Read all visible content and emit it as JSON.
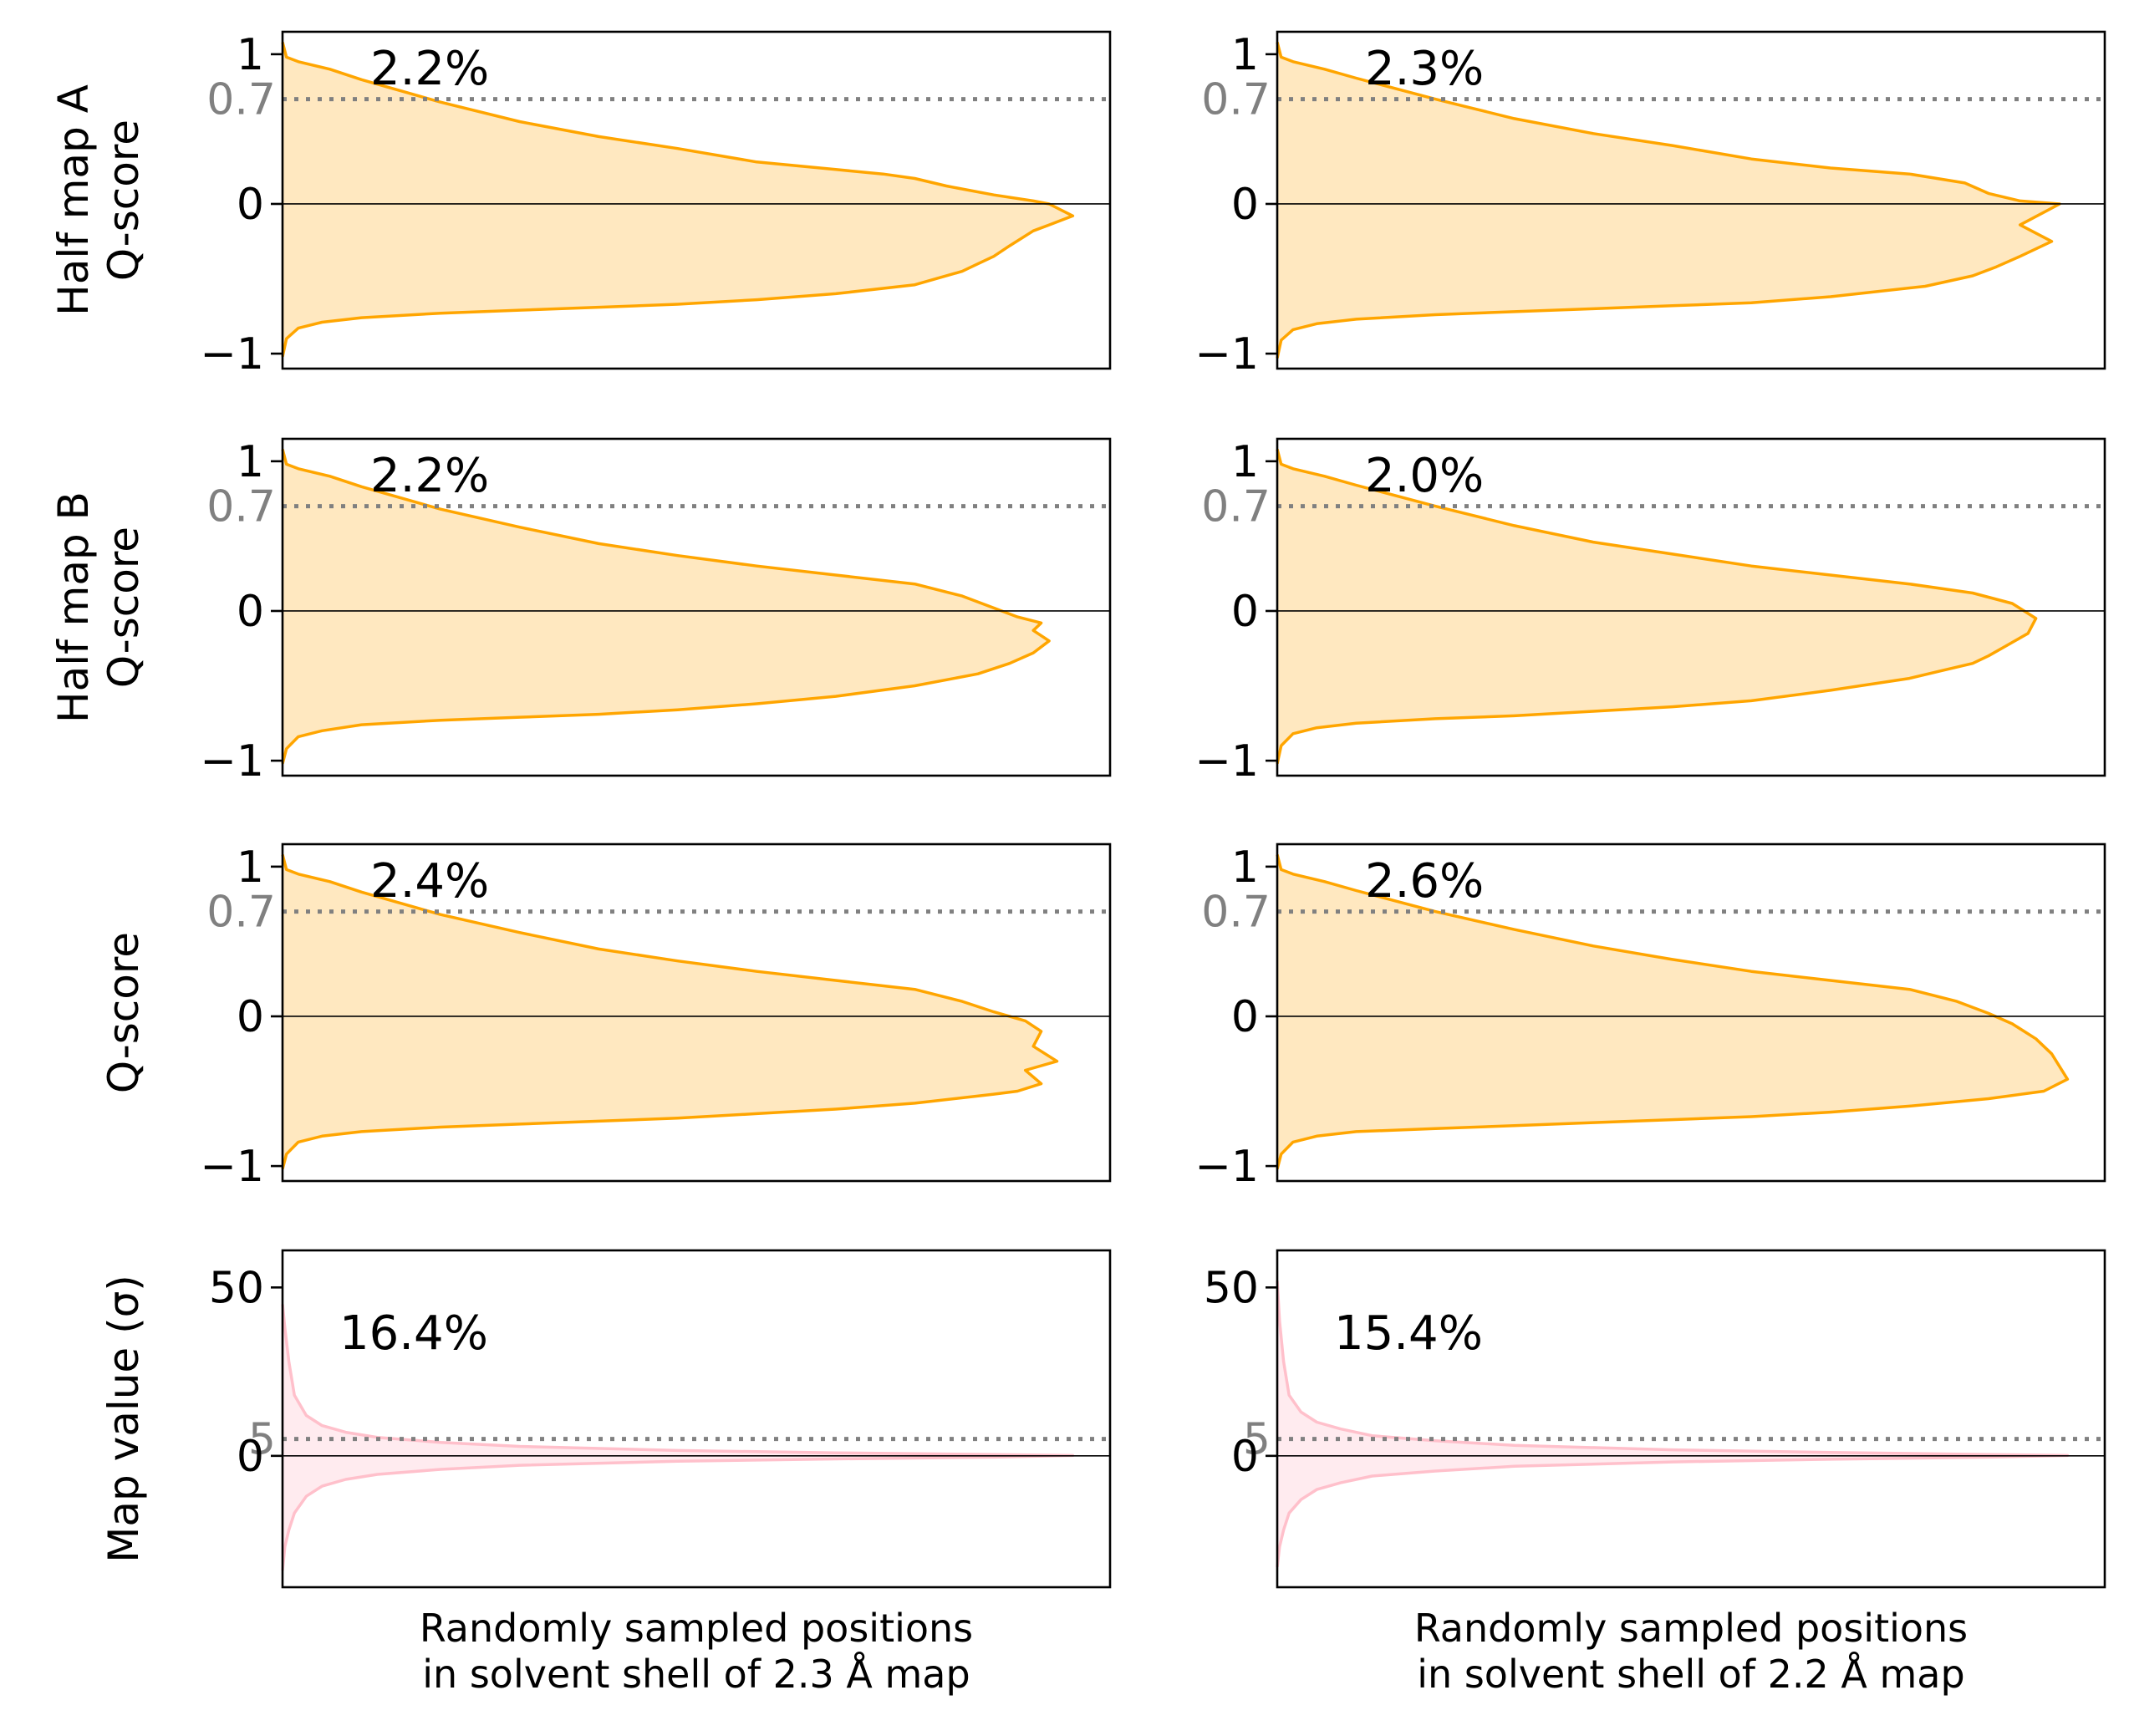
{
  "chart_data": [
    {
      "type": "area",
      "row": 0,
      "col": 0,
      "ylabel_lines": [
        "Half map A",
        "Q-score"
      ],
      "xlabel_lines": [],
      "ylim": [
        -1.1,
        1.15
      ],
      "yticks": [
        {
          "value": 1,
          "label": "1"
        },
        {
          "value": 0,
          "label": "0"
        },
        {
          "value": -1,
          "label": "−1"
        }
      ],
      "threshold": {
        "value": 0.7,
        "label": "0.7"
      },
      "zero_line": 0,
      "annotation": "2.2%",
      "color": "#FFA500",
      "fill": "#FFE8C0",
      "x": [
        0,
        0.005,
        0.02,
        0.06,
        0.1,
        0.2,
        0.3,
        0.4,
        0.5,
        0.6,
        0.7,
        0.76,
        0.8,
        0.84,
        0.9,
        0.95,
        0.97,
        1.0,
        0.97,
        0.95,
        0.92,
        0.9,
        0.88,
        0.86,
        0.8,
        0.7,
        0.6,
        0.5,
        0.4,
        0.3,
        0.2,
        0.1,
        0.05,
        0.02,
        0.005,
        0
      ],
      "y": [
        1.08,
        0.98,
        0.95,
        0.9,
        0.83,
        0.68,
        0.55,
        0.45,
        0.37,
        0.28,
        0.23,
        0.2,
        0.17,
        0.12,
        0.06,
        0.02,
        0.0,
        -0.08,
        -0.14,
        -0.18,
        -0.28,
        -0.35,
        -0.4,
        -0.45,
        -0.54,
        -0.6,
        -0.64,
        -0.67,
        -0.69,
        -0.71,
        -0.73,
        -0.76,
        -0.79,
        -0.83,
        -0.9,
        -1.02
      ]
    },
    {
      "type": "area",
      "row": 0,
      "col": 1,
      "ylabel_lines": [],
      "xlabel_lines": [],
      "ylim": [
        -1.1,
        1.15
      ],
      "yticks": [
        {
          "value": 1,
          "label": "1"
        },
        {
          "value": 0,
          "label": "0"
        },
        {
          "value": -1,
          "label": "−1"
        }
      ],
      "threshold": {
        "value": 0.7,
        "label": "0.7"
      },
      "zero_line": 0,
      "annotation": "2.3%",
      "color": "#FFA500",
      "fill": "#FFE8C0",
      "x": [
        0,
        0.005,
        0.02,
        0.06,
        0.1,
        0.2,
        0.3,
        0.4,
        0.5,
        0.6,
        0.7,
        0.8,
        0.87,
        0.9,
        0.94,
        0.99,
        0.94,
        0.98,
        0.94,
        0.91,
        0.88,
        0.82,
        0.7,
        0.6,
        0.5,
        0.4,
        0.3,
        0.2,
        0.1,
        0.05,
        0.02,
        0.005,
        0
      ],
      "y": [
        1.08,
        0.98,
        0.95,
        0.9,
        0.84,
        0.7,
        0.57,
        0.47,
        0.39,
        0.3,
        0.24,
        0.2,
        0.14,
        0.07,
        0.02,
        0.0,
        -0.14,
        -0.25,
        -0.35,
        -0.42,
        -0.48,
        -0.55,
        -0.62,
        -0.66,
        -0.68,
        -0.7,
        -0.72,
        -0.74,
        -0.77,
        -0.8,
        -0.84,
        -0.91,
        -1.03
      ]
    },
    {
      "type": "area",
      "row": 1,
      "col": 0,
      "ylabel_lines": [
        "Half map B",
        "Q-score"
      ],
      "xlabel_lines": [],
      "ylim": [
        -1.1,
        1.15
      ],
      "yticks": [
        {
          "value": 1,
          "label": "1"
        },
        {
          "value": 0,
          "label": "0"
        },
        {
          "value": -1,
          "label": "−1"
        }
      ],
      "threshold": {
        "value": 0.7,
        "label": "0.7"
      },
      "zero_line": 0,
      "annotation": "2.2%",
      "color": "#FFA500",
      "fill": "#FFE8C0",
      "x": [
        0,
        0.005,
        0.02,
        0.06,
        0.1,
        0.2,
        0.3,
        0.4,
        0.5,
        0.6,
        0.7,
        0.8,
        0.86,
        0.9,
        0.93,
        0.96,
        0.95,
        0.97,
        0.95,
        0.92,
        0.88,
        0.8,
        0.7,
        0.6,
        0.5,
        0.4,
        0.3,
        0.2,
        0.1,
        0.05,
        0.02,
        0.005,
        0
      ],
      "y": [
        1.08,
        0.98,
        0.95,
        0.9,
        0.83,
        0.68,
        0.56,
        0.45,
        0.37,
        0.3,
        0.24,
        0.18,
        0.1,
        0.02,
        -0.04,
        -0.08,
        -0.13,
        -0.2,
        -0.28,
        -0.35,
        -0.42,
        -0.5,
        -0.57,
        -0.62,
        -0.66,
        -0.69,
        -0.71,
        -0.73,
        -0.76,
        -0.8,
        -0.84,
        -0.92,
        -1.02
      ]
    },
    {
      "type": "area",
      "row": 1,
      "col": 1,
      "ylabel_lines": [],
      "xlabel_lines": [],
      "ylim": [
        -1.1,
        1.15
      ],
      "yticks": [
        {
          "value": 1,
          "label": "1"
        },
        {
          "value": 0,
          "label": "0"
        },
        {
          "value": -1,
          "label": "−1"
        }
      ],
      "threshold": {
        "value": 0.7,
        "label": "0.7"
      },
      "zero_line": 0,
      "annotation": "2.0%",
      "color": "#FFA500",
      "fill": "#FFE8C0",
      "x": [
        0,
        0.005,
        0.02,
        0.06,
        0.1,
        0.2,
        0.3,
        0.4,
        0.5,
        0.6,
        0.7,
        0.8,
        0.88,
        0.93,
        0.96,
        0.95,
        0.92,
        0.9,
        0.88,
        0.84,
        0.8,
        0.7,
        0.6,
        0.5,
        0.4,
        0.3,
        0.2,
        0.1,
        0.05,
        0.02,
        0.005,
        0
      ],
      "y": [
        1.08,
        0.98,
        0.95,
        0.9,
        0.84,
        0.7,
        0.57,
        0.46,
        0.38,
        0.3,
        0.24,
        0.18,
        0.12,
        0.05,
        -0.05,
        -0.15,
        -0.24,
        -0.3,
        -0.35,
        -0.4,
        -0.45,
        -0.53,
        -0.6,
        -0.64,
        -0.67,
        -0.7,
        -0.72,
        -0.75,
        -0.78,
        -0.82,
        -0.9,
        -1.02
      ]
    },
    {
      "type": "area",
      "row": 2,
      "col": 0,
      "ylabel_lines": [
        "Q-score"
      ],
      "xlabel_lines": [],
      "ylim": [
        -1.1,
        1.15
      ],
      "yticks": [
        {
          "value": 1,
          "label": "1"
        },
        {
          "value": 0,
          "label": "0"
        },
        {
          "value": -1,
          "label": "−1"
        }
      ],
      "threshold": {
        "value": 0.7,
        "label": "0.7"
      },
      "zero_line": 0,
      "annotation": "2.4%",
      "color": "#FFA500",
      "fill": "#FFE8C0",
      "x": [
        0,
        0.005,
        0.02,
        0.06,
        0.1,
        0.2,
        0.3,
        0.4,
        0.5,
        0.6,
        0.7,
        0.8,
        0.86,
        0.9,
        0.94,
        0.96,
        0.95,
        0.98,
        0.94,
        0.96,
        0.93,
        0.9,
        0.8,
        0.7,
        0.6,
        0.5,
        0.4,
        0.3,
        0.2,
        0.1,
        0.05,
        0.02,
        0.005,
        0
      ],
      "y": [
        1.08,
        0.98,
        0.95,
        0.9,
        0.83,
        0.68,
        0.56,
        0.45,
        0.37,
        0.3,
        0.24,
        0.18,
        0.1,
        0.03,
        -0.03,
        -0.1,
        -0.2,
        -0.3,
        -0.36,
        -0.45,
        -0.5,
        -0.52,
        -0.58,
        -0.62,
        -0.65,
        -0.68,
        -0.7,
        -0.72,
        -0.74,
        -0.77,
        -0.8,
        -0.84,
        -0.92,
        -1.02
      ]
    },
    {
      "type": "area",
      "row": 2,
      "col": 1,
      "ylabel_lines": [],
      "xlabel_lines": [],
      "ylim": [
        -1.1,
        1.15
      ],
      "yticks": [
        {
          "value": 1,
          "label": "1"
        },
        {
          "value": 0,
          "label": "0"
        },
        {
          "value": -1,
          "label": "−1"
        }
      ],
      "threshold": {
        "value": 0.7,
        "label": "0.7"
      },
      "zero_line": 0,
      "annotation": "2.6%",
      "color": "#FFA500",
      "fill": "#FFE8C0",
      "x": [
        0,
        0.005,
        0.02,
        0.06,
        0.1,
        0.2,
        0.3,
        0.4,
        0.5,
        0.6,
        0.7,
        0.8,
        0.86,
        0.9,
        0.93,
        0.96,
        0.98,
        1.0,
        0.97,
        0.9,
        0.8,
        0.7,
        0.6,
        0.5,
        0.4,
        0.3,
        0.2,
        0.1,
        0.05,
        0.02,
        0.005,
        0
      ],
      "y": [
        1.08,
        0.98,
        0.95,
        0.9,
        0.84,
        0.7,
        0.58,
        0.47,
        0.38,
        0.3,
        0.24,
        0.18,
        0.1,
        0.02,
        -0.05,
        -0.15,
        -0.25,
        -0.42,
        -0.5,
        -0.55,
        -0.6,
        -0.64,
        -0.67,
        -0.69,
        -0.71,
        -0.73,
        -0.75,
        -0.77,
        -0.8,
        -0.84,
        -0.92,
        -1.02
      ]
    },
    {
      "type": "area",
      "row": 3,
      "col": 0,
      "ylabel_lines": [
        "Map value (σ)"
      ],
      "xlabel_lines": [
        "Randomly sampled positions",
        "in solvent shell of 2.3 Å map"
      ],
      "ylim": [
        -39,
        61
      ],
      "yticks": [
        {
          "value": 50,
          "label": "50"
        },
        {
          "value": 0,
          "label": "0"
        }
      ],
      "threshold": {
        "value": 5,
        "label": "5"
      },
      "zero_line": 0,
      "annotation": "16.4%",
      "color": "#FFC0CB",
      "fill": "#FFEBEF",
      "x": [
        0,
        0.003,
        0.008,
        0.015,
        0.03,
        0.05,
        0.08,
        0.12,
        0.2,
        0.3,
        0.5,
        0.7,
        0.9,
        1.0,
        0.9,
        0.7,
        0.5,
        0.3,
        0.2,
        0.12,
        0.08,
        0.05,
        0.03,
        0.015,
        0.008,
        0.003,
        0
      ],
      "y": [
        45,
        38,
        28,
        18,
        12,
        9,
        7,
        5.5,
        4,
        2.8,
        1.6,
        0.9,
        0.4,
        0.1,
        -0.4,
        -0.9,
        -1.6,
        -2.8,
        -4,
        -5.5,
        -7,
        -9,
        -12,
        -17,
        -22,
        -27,
        -34
      ]
    },
    {
      "type": "area",
      "row": 3,
      "col": 1,
      "ylabel_lines": [],
      "xlabel_lines": [
        "Randomly sampled positions",
        "in solvent shell of 2.2 Å map"
      ],
      "ylim": [
        -39,
        61
      ],
      "yticks": [
        {
          "value": 50,
          "label": "50"
        },
        {
          "value": 0,
          "label": "0"
        }
      ],
      "threshold": {
        "value": 5,
        "label": "5"
      },
      "zero_line": 0,
      "annotation": "15.4%",
      "color": "#FFC0CB",
      "fill": "#FFEBEF",
      "x": [
        0,
        0.003,
        0.008,
        0.015,
        0.03,
        0.05,
        0.08,
        0.12,
        0.2,
        0.3,
        0.5,
        0.7,
        0.9,
        1.0,
        0.9,
        0.7,
        0.5,
        0.3,
        0.2,
        0.12,
        0.08,
        0.05,
        0.03,
        0.015,
        0.008,
        0.003,
        0
      ],
      "y": [
        52,
        40,
        28,
        18,
        13,
        10,
        8,
        6,
        4.5,
        3.1,
        1.8,
        1.0,
        0.4,
        0.1,
        -0.4,
        -1.0,
        -1.8,
        -3.1,
        -4.5,
        -6,
        -8,
        -10,
        -13,
        -17,
        -22,
        -27,
        -33
      ]
    }
  ]
}
